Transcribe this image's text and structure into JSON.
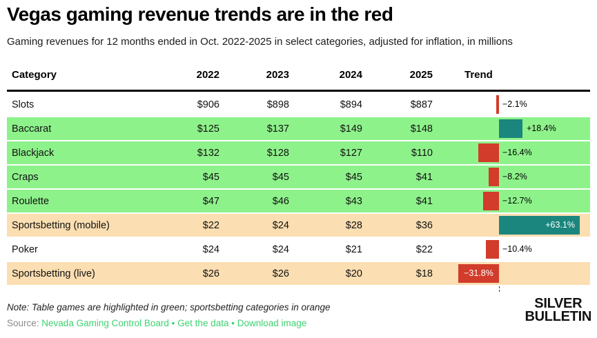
{
  "header": {
    "title": "Vegas gaming revenue trends are in the red",
    "subtitle": "Gaming revenues for 12 months ended in Oct. 2022-2025 in select categories, adjusted for inflation, in millions"
  },
  "chart_data": {
    "type": "table",
    "title": "Vegas gaming revenue trends are in the red",
    "columns": [
      "Category",
      "2022",
      "2023",
      "2024",
      "2025",
      "Trend"
    ],
    "rows": [
      {
        "category": "Slots",
        "values": [
          "$906",
          "$898",
          "$894",
          "$887"
        ],
        "trend_pct": -2.1,
        "trend_label": "−2.1%",
        "highlight": "none",
        "label_inside": false
      },
      {
        "category": "Baccarat",
        "values": [
          "$125",
          "$137",
          "$149",
          "$148"
        ],
        "trend_pct": 18.4,
        "trend_label": "+18.4%",
        "highlight": "green",
        "label_inside": false
      },
      {
        "category": "Blackjack",
        "values": [
          "$132",
          "$128",
          "$127",
          "$110"
        ],
        "trend_pct": -16.4,
        "trend_label": "−16.4%",
        "highlight": "green",
        "label_inside": false
      },
      {
        "category": "Craps",
        "values": [
          "$45",
          "$45",
          "$45",
          "$41"
        ],
        "trend_pct": -8.2,
        "trend_label": "−8.2%",
        "highlight": "green",
        "label_inside": false
      },
      {
        "category": "Roulette",
        "values": [
          "$47",
          "$46",
          "$43",
          "$41"
        ],
        "trend_pct": -12.7,
        "trend_label": "−12.7%",
        "highlight": "green",
        "label_inside": false
      },
      {
        "category": "Sportsbetting (mobile)",
        "values": [
          "$22",
          "$24",
          "$28",
          "$36"
        ],
        "trend_pct": 63.1,
        "trend_label": "+63.1%",
        "highlight": "orange",
        "label_inside": true
      },
      {
        "category": "Poker",
        "values": [
          "$24",
          "$24",
          "$21",
          "$22"
        ],
        "trend_pct": -10.4,
        "trend_label": "−10.4%",
        "highlight": "none",
        "label_inside": false
      },
      {
        "category": "Sportsbetting (live)",
        "values": [
          "$26",
          "$26",
          "$20",
          "$18"
        ],
        "trend_pct": -31.8,
        "trend_label": "−31.8%",
        "highlight": "orange",
        "label_inside": true
      }
    ],
    "colors": {
      "positive_bar": "#1b867d",
      "negative_bar": "#d13c2b",
      "green_row": "#8ef28b",
      "orange_row": "#fbdeb1",
      "link_green": "#3dd270"
    },
    "legend_note": "Table games are highlighted in green; sportsbetting categories in orange"
  },
  "footer": {
    "note": "Note: Table games are highlighted in green; sportsbetting categories in orange",
    "source_label": "Source:",
    "link_source": "Nevada Gaming Control Board",
    "separator1": "•",
    "link_data": "Get the data",
    "separator2": "•",
    "link_download": "Download image",
    "logo_line1": "SILVER",
    "logo_line2": "BULLETIN"
  }
}
